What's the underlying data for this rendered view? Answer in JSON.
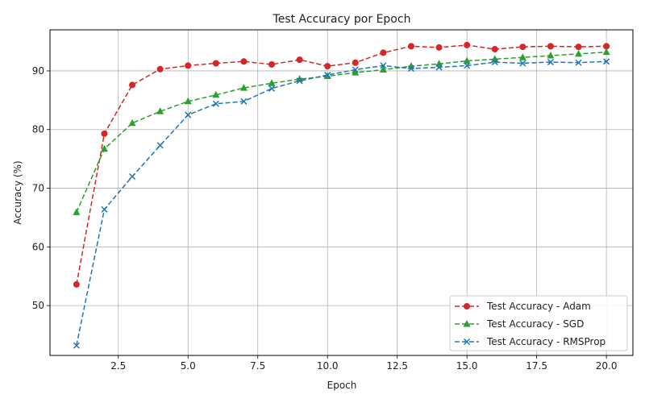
{
  "chart_data": {
    "type": "line",
    "title": "Test Accuracy por Epoch",
    "xlabel": "Epoch",
    "ylabel": "Accuracy (%)",
    "xlim": [
      0.05,
      20.95
    ],
    "ylim": [
      41.5,
      97.0
    ],
    "xticks": [
      2.5,
      5.0,
      7.5,
      10.0,
      12.5,
      15.0,
      17.5,
      20.0
    ],
    "xtick_labels": [
      "2.5",
      "5.0",
      "7.5",
      "10.0",
      "12.5",
      "15.0",
      "17.5",
      "20.0"
    ],
    "yticks": [
      50,
      60,
      70,
      80,
      90
    ],
    "ytick_labels": [
      "50",
      "60",
      "70",
      "80",
      "90"
    ],
    "grid": true,
    "legend_position": "lower-right",
    "x": [
      1,
      2,
      3,
      4,
      5,
      6,
      7,
      8,
      9,
      10,
      11,
      12,
      13,
      14,
      15,
      16,
      17,
      18,
      19,
      20
    ],
    "series": [
      {
        "name": "Test Accuracy - Adam",
        "color": "#d62728",
        "marker": "circle",
        "values": [
          53.6,
          79.3,
          87.6,
          90.3,
          90.9,
          91.3,
          91.6,
          91.1,
          91.9,
          90.8,
          91.4,
          93.1,
          94.2,
          94.0,
          94.4,
          93.7,
          94.1,
          94.2,
          94.1,
          94.2
        ]
      },
      {
        "name": "Test Accuracy - SGD",
        "color": "#2ca02c",
        "marker": "triangle",
        "values": [
          65.9,
          76.7,
          81.1,
          83.1,
          84.8,
          85.9,
          87.1,
          87.9,
          88.6,
          89.1,
          89.7,
          90.2,
          90.8,
          91.2,
          91.7,
          92.0,
          92.3,
          92.6,
          92.9,
          93.2
        ]
      },
      {
        "name": "Test Accuracy - RMSProp",
        "color": "#1f77b4",
        "marker": "x",
        "values": [
          43.2,
          66.4,
          72.0,
          77.3,
          82.5,
          84.4,
          84.8,
          87.0,
          88.3,
          89.3,
          90.2,
          90.9,
          90.4,
          90.6,
          90.9,
          91.5,
          91.3,
          91.5,
          91.4,
          91.6
        ]
      }
    ]
  }
}
